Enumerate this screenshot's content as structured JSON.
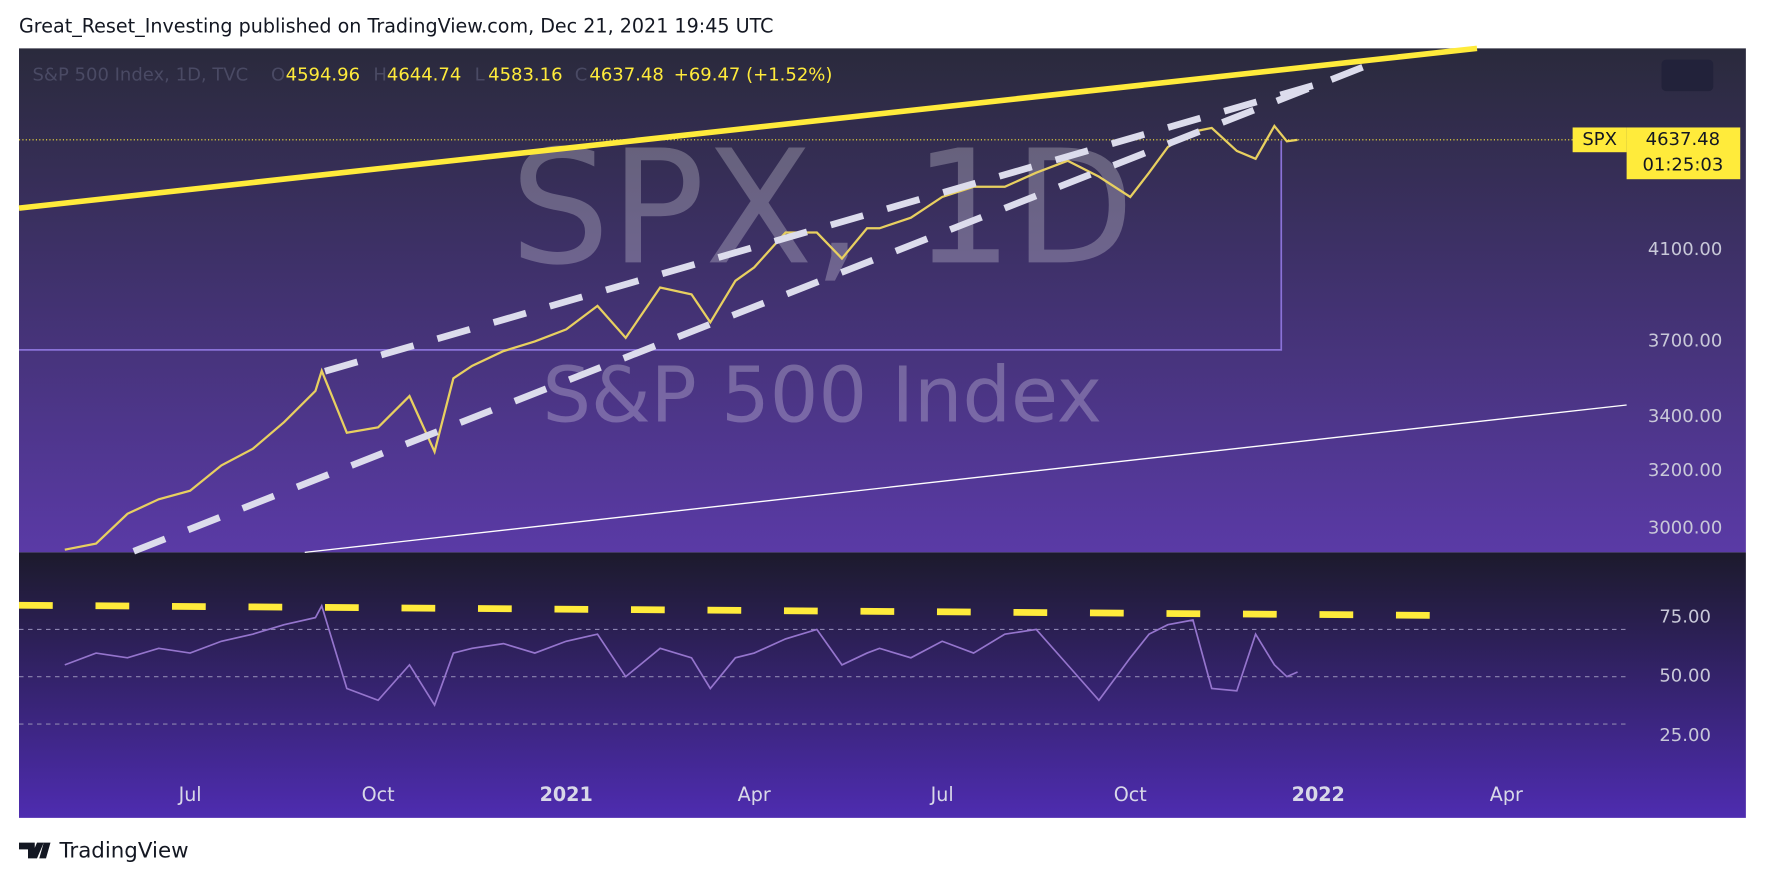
{
  "header": "Great_Reset_Investing published on TradingView.com, Dec 21, 2021 19:45 UTC",
  "footer": "TradingView",
  "chart_data": [
    {
      "type": "line",
      "title": "S&P 500 Index, 1D, TVC",
      "symbol": "SPX",
      "watermark_title": "SPX, 1D",
      "watermark_subtitle": "S&P 500 Index",
      "ohlc_labels": [
        "O",
        "H",
        "L",
        "C"
      ],
      "ohlc": [
        4594.96,
        4644.74,
        4583.16,
        4637.48
      ],
      "change_label": "+69.47 (+1.52%)",
      "last_price": 4637.48,
      "countdown": "01:25:03",
      "log_scale": true,
      "xlim": [
        3.27,
        28.92
      ],
      "ylim": [
        2921,
        5138
      ],
      "yticks": [
        {
          "value": 3000,
          "label": "3000.00"
        },
        {
          "value": 3200,
          "label": "3200.00"
        },
        {
          "value": 3400,
          "label": "3400.00"
        },
        {
          "value": 3700,
          "label": "3700.00"
        },
        {
          "value": 4100,
          "label": "4100.00"
        }
      ],
      "x": [
        4.0,
        4.5,
        5.0,
        5.5,
        6.0,
        6.5,
        7.0,
        7.5,
        8.0,
        8.1,
        8.5,
        9.0,
        9.5,
        9.9,
        10.2,
        10.5,
        11.0,
        11.5,
        12.0,
        12.5,
        12.95,
        13.5,
        14.0,
        14.3,
        14.7,
        15.0,
        15.5,
        16.0,
        16.4,
        16.8,
        17.0,
        17.5,
        18.0,
        18.5,
        19.0,
        19.5,
        20.0,
        20.5,
        21.0,
        21.3,
        21.6,
        22.0,
        22.3,
        22.7,
        23.0,
        23.3,
        23.5,
        23.67
      ],
      "series": [
        {
          "color": "#e8d060",
          "values": [
            2930,
            2950,
            3050,
            3100,
            3130,
            3220,
            3280,
            3380,
            3500,
            3580,
            3340,
            3360,
            3480,
            3270,
            3550,
            3600,
            3660,
            3700,
            3750,
            3850,
            3715,
            3930,
            3900,
            3780,
            3960,
            4020,
            4180,
            4180,
            4060,
            4200,
            4200,
            4250,
            4350,
            4400,
            4400,
            4470,
            4530,
            4450,
            4350,
            4470,
            4600,
            4680,
            4700,
            4580,
            4540,
            4710,
            4630,
            4637.48
          ]
        }
      ]
    },
    {
      "type": "line",
      "xlim": [
        3.27,
        28.92
      ],
      "ylim": [
        7.9,
        102.6
      ],
      "yticks": [
        {
          "value": 75,
          "label": "75.00"
        },
        {
          "value": 50,
          "label": "50.00"
        },
        {
          "value": 25,
          "label": "25.00"
        }
      ],
      "bands": [
        70,
        50,
        30
      ],
      "xticks": [
        {
          "value": 6,
          "label": "Jul"
        },
        {
          "value": 9,
          "label": "Oct"
        },
        {
          "value": 12,
          "label": "2021"
        },
        {
          "value": 15,
          "label": "Apr"
        },
        {
          "value": 18,
          "label": "Jul"
        },
        {
          "value": 21,
          "label": "Oct"
        },
        {
          "value": 24,
          "label": "2022"
        },
        {
          "value": 27,
          "label": "Apr"
        }
      ],
      "x": [
        4.0,
        4.5,
        5.0,
        5.5,
        6.0,
        6.5,
        7.0,
        7.5,
        8.0,
        8.1,
        8.5,
        9.0,
        9.5,
        9.9,
        10.2,
        10.5,
        11.0,
        11.5,
        12.0,
        12.5,
        12.95,
        13.5,
        14.0,
        14.3,
        14.7,
        15.0,
        15.5,
        16.0,
        16.4,
        16.8,
        17.0,
        17.5,
        18.0,
        18.5,
        19.0,
        19.5,
        20.0,
        20.5,
        21.0,
        21.3,
        21.6,
        22.0,
        22.3,
        22.7,
        23.0,
        23.3,
        23.5,
        23.67
      ],
      "series": [
        {
          "color": "#9575cd",
          "values": [
            55,
            60,
            58,
            62,
            60,
            65,
            68,
            72,
            75,
            80,
            45,
            40,
            55,
            38,
            60,
            62,
            64,
            60,
            65,
            68,
            50,
            62,
            58,
            45,
            58,
            60,
            66,
            70,
            55,
            60,
            62,
            58,
            65,
            60,
            68,
            70,
            55,
            40,
            58,
            68,
            72,
            74,
            45,
            44,
            68,
            55,
            50,
            52
          ]
        }
      ]
    }
  ]
}
